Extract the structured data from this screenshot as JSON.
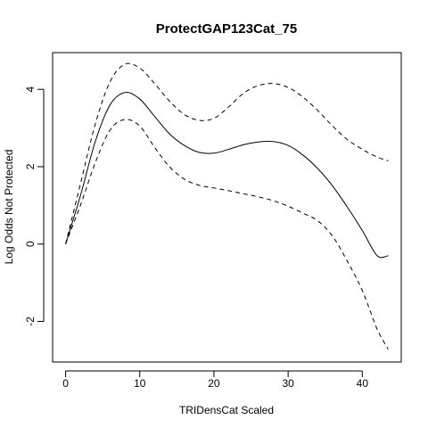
{
  "chart_data": {
    "type": "line",
    "title": "ProtectGAP123Cat_75",
    "xlabel": "TRIDensCat Scaled",
    "ylabel": "Log Odds Not Protected",
    "xlim": [
      -1.75,
      45.25
    ],
    "ylim": [
      -3.05,
      4.95
    ],
    "xticks": [
      0,
      10,
      20,
      30,
      40
    ],
    "yticks": [
      -2,
      0,
      2,
      4
    ],
    "grid": false,
    "legend": "none",
    "series": [
      {
        "style": "dashed",
        "x": [
          0,
          2,
          4,
          6,
          8,
          10,
          12,
          14,
          16,
          18,
          20,
          22,
          24,
          26,
          28,
          30,
          32,
          34,
          36,
          38,
          40,
          42,
          43.5
        ],
        "y": [
          0.0,
          1.55,
          3.1,
          4.2,
          4.65,
          4.55,
          4.15,
          3.7,
          3.35,
          3.2,
          3.25,
          3.55,
          3.9,
          4.1,
          4.15,
          4.05,
          3.8,
          3.45,
          3.05,
          2.7,
          2.45,
          2.25,
          2.15
        ]
      },
      {
        "style": "solid",
        "x": [
          0,
          2,
          4,
          6,
          8,
          10,
          12,
          14,
          16,
          18,
          20,
          22,
          24,
          26,
          28,
          30,
          32,
          34,
          36,
          38,
          40,
          42,
          43.5
        ],
        "y": [
          0.0,
          1.25,
          2.65,
          3.6,
          3.92,
          3.75,
          3.3,
          2.85,
          2.55,
          2.37,
          2.35,
          2.45,
          2.57,
          2.64,
          2.65,
          2.55,
          2.3,
          1.95,
          1.5,
          0.95,
          0.35,
          -0.3,
          -0.3
        ]
      },
      {
        "style": "dashed",
        "x": [
          0,
          2,
          4,
          6,
          8,
          10,
          12,
          14,
          16,
          18,
          20,
          22,
          24,
          26,
          28,
          30,
          32,
          34,
          36,
          38,
          40,
          42,
          43.5
        ],
        "y": [
          0.0,
          1.0,
          2.1,
          2.95,
          3.22,
          3.05,
          2.5,
          2.0,
          1.68,
          1.52,
          1.45,
          1.38,
          1.3,
          1.22,
          1.12,
          0.98,
          0.8,
          0.6,
          0.2,
          -0.45,
          -1.2,
          -2.2,
          -2.72
        ]
      }
    ]
  }
}
